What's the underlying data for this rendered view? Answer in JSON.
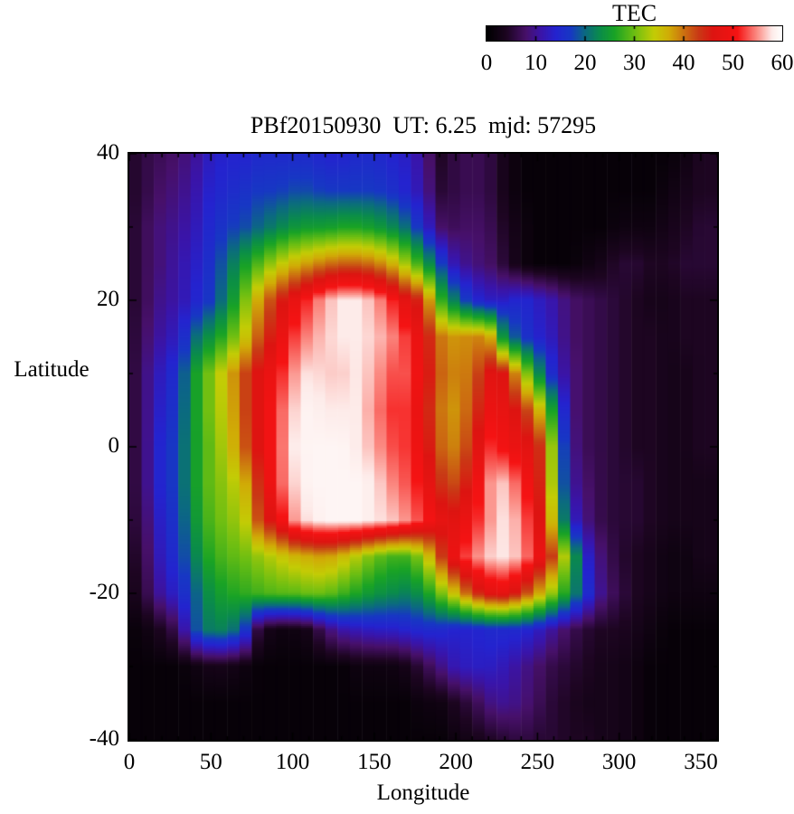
{
  "figure": {
    "title": "PBf20150930  UT: 6.25  mjd: 57295",
    "background": "#ffffff"
  },
  "colorbar": {
    "label": "TEC",
    "min": 0,
    "max": 60,
    "tick_values": [
      0,
      10,
      20,
      30,
      40,
      50,
      60
    ],
    "tick_labels": [
      "0",
      "10",
      "20",
      "30",
      "40",
      "50",
      "60"
    ]
  },
  "axes": {
    "x": {
      "label": "Longitude",
      "min": 0,
      "max": 360,
      "major_tick_values": [
        0,
        50,
        100,
        150,
        200,
        250,
        300,
        350
      ],
      "major_tick_labels": [
        "0",
        "50",
        "100",
        "150",
        "200",
        "250",
        "300",
        "350"
      ],
      "minor_step": 10
    },
    "y": {
      "label": "Latitude",
      "min": -40,
      "max": 40,
      "major_tick_values": [
        40,
        20,
        0,
        -20,
        -40
      ],
      "major_tick_labels": [
        "40",
        "20",
        "0",
        "-20",
        "-40"
      ],
      "minor_step": 10
    }
  },
  "chart_data": {
    "type": "heatmap",
    "title": "PBf20150930  UT: 6.25  mjd: 57295",
    "xlabel": "Longitude",
    "ylabel": "Latitude",
    "value_label": "TEC",
    "x_range": [
      0,
      360
    ],
    "y_range": [
      -40,
      40
    ],
    "value_range": [
      0,
      60
    ],
    "legend_position": "top-right-horizontal-colorbox",
    "grid": "off",
    "grid_lons": [
      0,
      10,
      20,
      30,
      40,
      50,
      60,
      70,
      80,
      90,
      100,
      110,
      120,
      130,
      140,
      150,
      160,
      170,
      180,
      190,
      200,
      210,
      220,
      230,
      240,
      250,
      260,
      270,
      280,
      290,
      300,
      310,
      320,
      330,
      340,
      350,
      360
    ],
    "grid_lats": [
      40,
      35,
      30,
      25,
      20,
      15,
      10,
      5,
      0,
      -5,
      -10,
      -15,
      -20,
      -25,
      -30,
      -35,
      -40
    ],
    "values": [
      [
        4,
        6,
        7,
        8,
        10,
        13,
        14,
        14,
        15,
        15,
        15,
        15,
        14,
        14,
        15,
        15,
        14,
        13,
        10,
        4,
        6,
        7,
        6,
        3,
        1,
        1,
        1,
        1,
        1,
        1,
        1,
        1,
        1,
        1,
        2,
        4,
        4
      ],
      [
        4,
        6,
        8,
        9,
        11,
        14,
        15,
        16,
        17,
        17,
        18,
        18,
        17,
        17,
        17,
        17,
        16,
        14,
        11,
        5,
        6,
        7,
        6,
        3,
        1,
        1,
        1,
        1,
        1,
        1,
        1,
        1,
        1,
        2,
        3,
        4,
        4
      ],
      [
        4,
        7,
        9,
        10,
        12,
        15,
        17,
        18,
        20,
        22,
        24,
        25,
        25,
        26,
        26,
        25,
        23,
        20,
        15,
        8,
        7,
        8,
        7,
        4,
        2,
        1,
        1,
        1,
        1,
        1,
        2,
        2,
        2,
        3,
        4,
        5,
        5
      ],
      [
        4,
        7,
        9,
        11,
        13,
        16,
        20,
        25,
        29,
        33,
        36,
        38,
        40,
        41,
        41,
        40,
        37,
        32,
        26,
        18,
        11,
        9,
        8,
        5,
        2,
        1,
        1,
        1,
        2,
        3,
        5,
        5,
        4,
        4,
        5,
        5,
        5
      ],
      [
        4,
        7,
        10,
        11,
        14,
        17,
        22,
        30,
        38,
        44,
        48,
        52,
        56,
        58,
        58,
        56,
        52,
        47,
        44,
        28,
        21,
        15,
        13,
        13,
        15,
        13,
        11,
        8,
        7,
        6,
        5,
        4,
        3,
        3,
        4,
        4,
        4
      ],
      [
        4,
        8,
        11,
        13,
        20,
        24,
        28,
        34,
        42,
        47,
        52,
        55,
        57,
        58,
        58,
        57,
        55,
        52,
        47,
        40,
        38,
        39,
        39,
        22,
        17,
        14,
        12,
        8,
        7,
        6,
        5,
        4,
        4,
        3,
        4,
        4,
        4
      ],
      [
        4,
        9,
        13,
        16,
        25,
        31,
        36,
        42,
        47,
        50,
        55,
        58,
        57,
        57,
        58,
        56,
        53,
        53,
        48,
        41,
        39,
        40,
        47,
        46,
        35,
        24,
        14,
        9,
        7,
        6,
        5,
        4,
        4,
        3,
        3,
        4,
        4
      ],
      [
        4,
        9,
        14,
        17,
        25,
        31,
        35,
        42,
        47,
        52,
        57,
        59,
        58,
        58,
        58,
        55,
        52,
        52,
        47,
        40,
        38,
        42,
        49,
        48,
        45,
        38,
        24,
        9,
        7,
        6,
        5,
        4,
        4,
        3,
        3,
        4,
        4
      ],
      [
        4,
        9,
        15,
        18,
        25,
        30,
        34,
        41,
        47,
        52,
        58,
        59,
        59,
        59,
        58,
        56,
        53,
        52,
        48,
        41,
        39,
        44,
        52,
        50,
        48,
        46,
        30,
        10,
        7,
        6,
        5,
        4,
        4,
        3,
        3,
        4,
        4
      ],
      [
        4,
        9,
        15,
        18,
        25,
        30,
        32,
        36,
        45,
        52,
        57,
        59,
        59,
        59,
        59,
        58,
        55,
        53,
        50,
        44,
        42,
        47,
        55,
        57,
        52,
        47,
        31,
        11,
        8,
        6,
        5,
        5,
        4,
        3,
        3,
        3,
        3
      ],
      [
        4,
        8,
        14,
        17,
        24,
        29,
        31,
        33,
        43,
        48,
        55,
        58,
        59,
        59,
        59,
        58,
        57,
        55,
        52,
        48,
        47,
        50,
        55,
        58,
        55,
        48,
        34,
        14,
        9,
        6,
        5,
        5,
        4,
        3,
        3,
        3,
        3
      ],
      [
        3,
        7,
        13,
        16,
        22,
        27,
        29,
        30,
        32,
        34,
        36,
        37,
        38,
        36,
        33,
        30,
        28,
        28,
        32,
        42,
        50,
        54,
        57,
        58,
        56,
        50,
        42,
        28,
        14,
        8,
        5,
        4,
        3,
        2,
        2,
        3,
        3
      ],
      [
        2,
        6,
        11,
        14,
        19,
        24,
        26,
        27,
        28,
        29,
        29,
        30,
        30,
        28,
        26,
        24,
        23,
        22,
        24,
        30,
        36,
        43,
        47,
        48,
        44,
        38,
        31,
        24,
        16,
        9,
        6,
        4,
        3,
        2,
        2,
        2,
        2
      ],
      [
        1,
        2,
        4,
        7,
        18,
        22,
        22,
        18,
        4,
        2,
        2,
        3,
        8,
        11,
        12,
        13,
        13,
        14,
        15,
        15,
        14,
        14,
        15,
        15,
        15,
        13,
        10,
        7,
        5,
        4,
        4,
        3,
        2,
        1,
        1,
        1,
        1
      ],
      [
        1,
        1,
        1,
        1,
        2,
        3,
        3,
        2,
        1,
        1,
        1,
        1,
        1,
        1,
        2,
        2,
        2,
        3,
        6,
        9,
        12,
        13,
        13,
        12,
        10,
        8,
        6,
        5,
        4,
        3,
        3,
        2,
        1,
        1,
        1,
        1,
        1
      ],
      [
        1,
        1,
        1,
        1,
        1,
        1,
        1,
        1,
        1,
        1,
        1,
        1,
        1,
        1,
        1,
        1,
        1,
        1,
        2,
        2,
        4,
        6,
        9,
        10,
        9,
        7,
        5,
        4,
        3,
        3,
        3,
        2,
        1,
        1,
        1,
        1,
        1
      ],
      [
        1,
        1,
        1,
        1,
        1,
        1,
        1,
        1,
        1,
        1,
        1,
        1,
        1,
        1,
        1,
        1,
        1,
        1,
        1,
        1,
        2,
        3,
        4,
        5,
        6,
        5,
        5,
        4,
        4,
        3,
        3,
        2,
        1,
        1,
        1,
        1,
        1
      ]
    ],
    "palette_stops": [
      [
        0,
        "#000000"
      ],
      [
        4,
        "#1d0521"
      ],
      [
        8,
        "#47106a"
      ],
      [
        11,
        "#3a14a8"
      ],
      [
        14,
        "#2423cf"
      ],
      [
        17,
        "#1737c4"
      ],
      [
        20,
        "#0b6a80"
      ],
      [
        23,
        "#0a8c4a"
      ],
      [
        26,
        "#19a325"
      ],
      [
        30,
        "#6cbe12"
      ],
      [
        34,
        "#c3cc05"
      ],
      [
        37,
        "#d0ac06"
      ],
      [
        40,
        "#cc7210"
      ],
      [
        43,
        "#c93a15"
      ],
      [
        46,
        "#dd1411"
      ],
      [
        51,
        "#f51313"
      ],
      [
        55,
        "#fb8d85"
      ],
      [
        58,
        "#fdebe9"
      ],
      [
        60,
        "#ffffff"
      ]
    ],
    "cell_deg": [
      7.5,
      2.5
    ]
  }
}
